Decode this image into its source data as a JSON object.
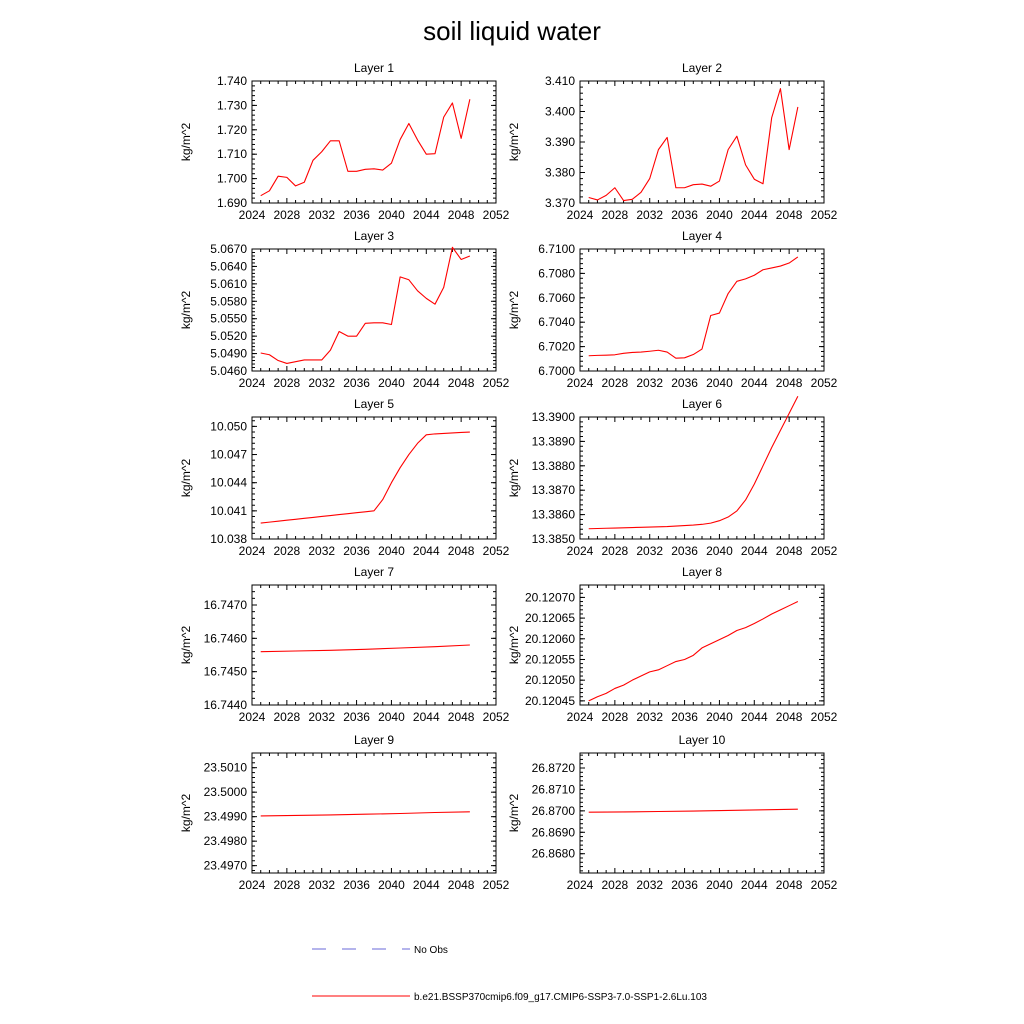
{
  "figure": {
    "title": "soil liquid water"
  },
  "legend": {
    "obs_label": "No Obs",
    "obs_color": "#6a6ad8",
    "model_label": "b.e21.BSSP370cmip6.f09_g17.CMIP6-SSP3-7.0-SSP1-2.6Lu.103",
    "model_color": "#ff0000"
  },
  "chart_data": [
    {
      "type": "line",
      "title": "Layer 1",
      "xlabel": "",
      "ylabel": "kg/m^2",
      "xlim": [
        2024,
        2052
      ],
      "ylim": [
        1.69,
        1.74
      ],
      "xticks": [
        "2024",
        "2028",
        "2032",
        "2036",
        "2040",
        "2044",
        "2048",
        "2052"
      ],
      "yticks": [
        1.69,
        1.7,
        1.71,
        1.72,
        1.73,
        1.74
      ],
      "yticklabels": [
        "1.690",
        "1.700",
        "1.710",
        "1.720",
        "1.730",
        "1.740"
      ],
      "series": [
        {
          "color": "#ff0000",
          "x": [
            2025,
            2026,
            2027,
            2028,
            2029,
            2030,
            2031,
            2032,
            2033,
            2034,
            2035,
            2036,
            2037,
            2038,
            2039,
            2040,
            2041,
            2042,
            2043,
            2044,
            2045,
            2046,
            2047,
            2048,
            2049
          ],
          "y": [
            1.693,
            1.695,
            1.701,
            1.7005,
            1.697,
            1.6985,
            1.7075,
            1.711,
            1.7155,
            1.7155,
            1.703,
            1.703,
            1.7038,
            1.704,
            1.7035,
            1.7063,
            1.716,
            1.7226,
            1.7158,
            1.71,
            1.7102,
            1.7252,
            1.731,
            1.7165,
            1.7325
          ]
        }
      ]
    },
    {
      "type": "line",
      "title": "Layer 2",
      "xlabel": "",
      "ylabel": "kg/m^2",
      "xlim": [
        2024,
        2052
      ],
      "ylim": [
        3.37,
        3.41
      ],
      "xticks": [
        "2024",
        "2028",
        "2032",
        "2036",
        "2040",
        "2044",
        "2048",
        "2052"
      ],
      "yticks": [
        3.37,
        3.38,
        3.39,
        3.4,
        3.41
      ],
      "yticklabels": [
        "3.370",
        "3.380",
        "3.390",
        "3.400",
        "3.410"
      ],
      "series": [
        {
          "color": "#ff0000",
          "x": [
            2025,
            2026,
            2027,
            2028,
            2029,
            2030,
            2031,
            2032,
            2033,
            2034,
            2035,
            2036,
            2037,
            2038,
            2039,
            2040,
            2041,
            2042,
            2043,
            2044,
            2045,
            2046,
            2047,
            2048,
            2049
          ],
          "y": [
            3.3718,
            3.371,
            3.3725,
            3.375,
            3.3708,
            3.3712,
            3.3735,
            3.378,
            3.3875,
            3.3915,
            3.375,
            3.375,
            3.376,
            3.3762,
            3.3755,
            3.3772,
            3.3875,
            3.3919,
            3.3825,
            3.3778,
            3.3763,
            3.398,
            3.4075,
            3.3875,
            3.4015
          ]
        }
      ]
    },
    {
      "type": "line",
      "title": "Layer 3",
      "xlabel": "",
      "ylabel": "kg/m^2",
      "xlim": [
        2024,
        2052
      ],
      "ylim": [
        5.046,
        5.067
      ],
      "xticks": [
        "2024",
        "2028",
        "2032",
        "2036",
        "2040",
        "2044",
        "2048",
        "2052"
      ],
      "yticks": [
        5.046,
        5.049,
        5.052,
        5.055,
        5.058,
        5.061,
        5.064,
        5.067
      ],
      "yticklabels": [
        "5.0460",
        "5.0490",
        "5.0520",
        "5.0550",
        "5.0580",
        "5.0610",
        "5.0640",
        "5.0670"
      ],
      "series": [
        {
          "color": "#ff0000",
          "x": [
            2025,
            2026,
            2027,
            2028,
            2029,
            2030,
            2031,
            2032,
            2033,
            2034,
            2035,
            2036,
            2037,
            2038,
            2039,
            2040,
            2041,
            2042,
            2043,
            2044,
            2045,
            2046,
            2047,
            2048,
            2049
          ],
          "y": [
            5.0491,
            5.0488,
            5.0478,
            5.0473,
            5.0476,
            5.0479,
            5.0479,
            5.0479,
            5.0496,
            5.0528,
            5.052,
            5.052,
            5.0542,
            5.0543,
            5.0543,
            5.054,
            5.0622,
            5.0617,
            5.0598,
            5.0585,
            5.0575,
            5.0604,
            5.0673,
            5.0652,
            5.0658
          ]
        }
      ]
    },
    {
      "type": "line",
      "title": "Layer 4",
      "xlabel": "",
      "ylabel": "kg/m^2",
      "xlim": [
        2024,
        2052
      ],
      "ylim": [
        6.7,
        6.71
      ],
      "xticks": [
        "2024",
        "2028",
        "2032",
        "2036",
        "2040",
        "2044",
        "2048",
        "2052"
      ],
      "yticks": [
        6.7,
        6.702,
        6.704,
        6.706,
        6.708,
        6.71
      ],
      "yticklabels": [
        "6.7000",
        "6.7020",
        "6.7040",
        "6.7060",
        "6.7080",
        "6.7100"
      ],
      "series": [
        {
          "color": "#ff0000",
          "x": [
            2025,
            2026,
            2027,
            2028,
            2029,
            2030,
            2031,
            2032,
            2033,
            2034,
            2035,
            2036,
            2037,
            2038,
            2039,
            2040,
            2041,
            2042,
            2043,
            2044,
            2045,
            2046,
            2047,
            2048,
            2049
          ],
          "y": [
            6.70125,
            6.70128,
            6.7013,
            6.70133,
            6.70145,
            6.70152,
            6.70155,
            6.70162,
            6.7017,
            6.70155,
            6.70105,
            6.70108,
            6.70135,
            6.7018,
            6.70455,
            6.70475,
            6.70635,
            6.70735,
            6.70755,
            6.70785,
            6.7083,
            6.70845,
            6.7086,
            6.70885,
            6.70935
          ]
        }
      ]
    },
    {
      "type": "line",
      "title": "Layer 5",
      "xlabel": "",
      "ylabel": "kg/m^2",
      "xlim": [
        2024,
        2052
      ],
      "ylim": [
        10.038,
        10.051
      ],
      "xticks": [
        "2024",
        "2028",
        "2032",
        "2036",
        "2040",
        "2044",
        "2048",
        "2052"
      ],
      "yticks": [
        10.038,
        10.041,
        10.044,
        10.047,
        10.05
      ],
      "yticklabels": [
        "10.038",
        "10.041",
        "10.044",
        "10.047",
        "10.050"
      ],
      "series": [
        {
          "color": "#ff0000",
          "x": [
            2025,
            2026,
            2027,
            2028,
            2029,
            2030,
            2031,
            2032,
            2033,
            2034,
            2035,
            2036,
            2037,
            2038,
            2039,
            2040,
            2041,
            2042,
            2043,
            2044,
            2045,
            2046,
            2047,
            2048,
            2049
          ],
          "y": [
            10.0397,
            10.0398,
            10.0399,
            10.04,
            10.0401,
            10.0402,
            10.0403,
            10.0404,
            10.0405,
            10.0406,
            10.0407,
            10.0408,
            10.0409,
            10.041,
            10.0422,
            10.044,
            10.0456,
            10.047,
            10.0482,
            10.0491,
            10.0492,
            10.04925,
            10.0493,
            10.04935,
            10.0494
          ]
        }
      ]
    },
    {
      "type": "line",
      "title": "Layer 6",
      "xlabel": "",
      "ylabel": "kg/m^2",
      "xlim": [
        2024,
        2052
      ],
      "ylim": [
        13.385,
        13.39
      ],
      "xticks": [
        "2024",
        "2028",
        "2032",
        "2036",
        "2040",
        "2044",
        "2048",
        "2052"
      ],
      "yticks": [
        13.385,
        13.386,
        13.387,
        13.388,
        13.389,
        13.39
      ],
      "yticklabels": [
        "13.3850",
        "13.3860",
        "13.3870",
        "13.3880",
        "13.3890",
        "13.3900"
      ],
      "series": [
        {
          "color": "#ff0000",
          "x": [
            2025,
            2026,
            2027,
            2028,
            2029,
            2030,
            2031,
            2032,
            2033,
            2034,
            2035,
            2036,
            2037,
            2038,
            2039,
            2040,
            2041,
            2042,
            2043,
            2044,
            2045,
            2046,
            2047,
            2048,
            2049
          ],
          "y": [
            13.38542,
            13.38543,
            13.38544,
            13.38545,
            13.38546,
            13.38547,
            13.38548,
            13.38549,
            13.3855,
            13.38551,
            13.38553,
            13.38555,
            13.38557,
            13.3856,
            13.38565,
            13.38575,
            13.3859,
            13.38615,
            13.3866,
            13.38725,
            13.388,
            13.38875,
            13.38945,
            13.39015,
            13.39085
          ]
        }
      ]
    },
    {
      "type": "line",
      "title": "Layer 7",
      "xlabel": "",
      "ylabel": "kg/m^2",
      "xlim": [
        2024,
        2052
      ],
      "ylim": [
        16.744,
        16.7476
      ],
      "xticks": [
        "2024",
        "2028",
        "2032",
        "2036",
        "2040",
        "2044",
        "2048",
        "2052"
      ],
      "yticks": [
        16.744,
        16.745,
        16.746,
        16.747
      ],
      "yticklabels": [
        "16.7440",
        "16.7450",
        "16.7460",
        "16.7470"
      ],
      "series": [
        {
          "color": "#ff0000",
          "x": [
            2025,
            2029,
            2033,
            2037,
            2041,
            2045,
            2049
          ],
          "y": [
            16.7456,
            16.74562,
            16.74564,
            16.74567,
            16.74571,
            16.74575,
            16.7458
          ]
        }
      ]
    },
    {
      "type": "line",
      "title": "Layer 8",
      "xlabel": "",
      "ylabel": "kg/m^2",
      "xlim": [
        2024,
        2052
      ],
      "ylim": [
        20.12044,
        20.12073
      ],
      "xticks": [
        "2024",
        "2028",
        "2032",
        "2036",
        "2040",
        "2044",
        "2048",
        "2052"
      ],
      "yticks": [
        20.12045,
        20.1205,
        20.12055,
        20.1206,
        20.12065,
        20.1207
      ],
      "yticklabels": [
        "20.12045",
        "20.12050",
        "20.12055",
        "20.12060",
        "20.12065",
        "20.12070"
      ],
      "series": [
        {
          "color": "#ff0000",
          "x": [
            2025,
            2026,
            2027,
            2028,
            2029,
            2030,
            2031,
            2032,
            2033,
            2034,
            2035,
            2036,
            2037,
            2038,
            2039,
            2040,
            2041,
            2042,
            2043,
            2044,
            2045,
            2046,
            2047,
            2048,
            2049
          ],
          "y": [
            20.12045,
            20.12046,
            20.120468,
            20.12048,
            20.120488,
            20.1205,
            20.12051,
            20.12052,
            20.120525,
            20.120535,
            20.120545,
            20.12055,
            20.12056,
            20.120578,
            20.120588,
            20.120598,
            20.120608,
            20.12062,
            20.120627,
            20.120637,
            20.120648,
            20.12066,
            20.12067,
            20.12068,
            20.12069
          ]
        }
      ]
    },
    {
      "type": "line",
      "title": "Layer 9",
      "xlabel": "",
      "ylabel": "kg/m^2",
      "xlim": [
        2024,
        2052
      ],
      "ylim": [
        23.4967,
        23.5016
      ],
      "xticks": [
        "2024",
        "2028",
        "2032",
        "2036",
        "2040",
        "2044",
        "2048",
        "2052"
      ],
      "yticks": [
        23.497,
        23.498,
        23.499,
        23.5,
        23.501
      ],
      "yticklabels": [
        "23.4970",
        "23.4980",
        "23.4990",
        "23.5000",
        "23.5010"
      ],
      "series": [
        {
          "color": "#ff0000",
          "x": [
            2025,
            2029,
            2033,
            2037,
            2041,
            2045,
            2049
          ],
          "y": [
            23.49903,
            23.49905,
            23.49907,
            23.4991,
            23.49913,
            23.49917,
            23.4992
          ]
        }
      ]
    },
    {
      "type": "line",
      "title": "Layer 10",
      "xlabel": "",
      "ylabel": "kg/m^2",
      "xlim": [
        2024,
        2052
      ],
      "ylim": [
        26.8671,
        26.8727
      ],
      "xticks": [
        "2024",
        "2028",
        "2032",
        "2036",
        "2040",
        "2044",
        "2048",
        "2052"
      ],
      "yticks": [
        26.868,
        26.869,
        26.87,
        26.871,
        26.872
      ],
      "yticklabels": [
        "26.8680",
        "26.8690",
        "26.8700",
        "26.8710",
        "26.8720"
      ],
      "series": [
        {
          "color": "#ff0000",
          "x": [
            2025,
            2029,
            2033,
            2037,
            2041,
            2045,
            2049
          ],
          "y": [
            26.86994,
            26.86995,
            26.86997,
            26.86999,
            26.87002,
            26.87005,
            26.87008
          ]
        }
      ]
    }
  ]
}
